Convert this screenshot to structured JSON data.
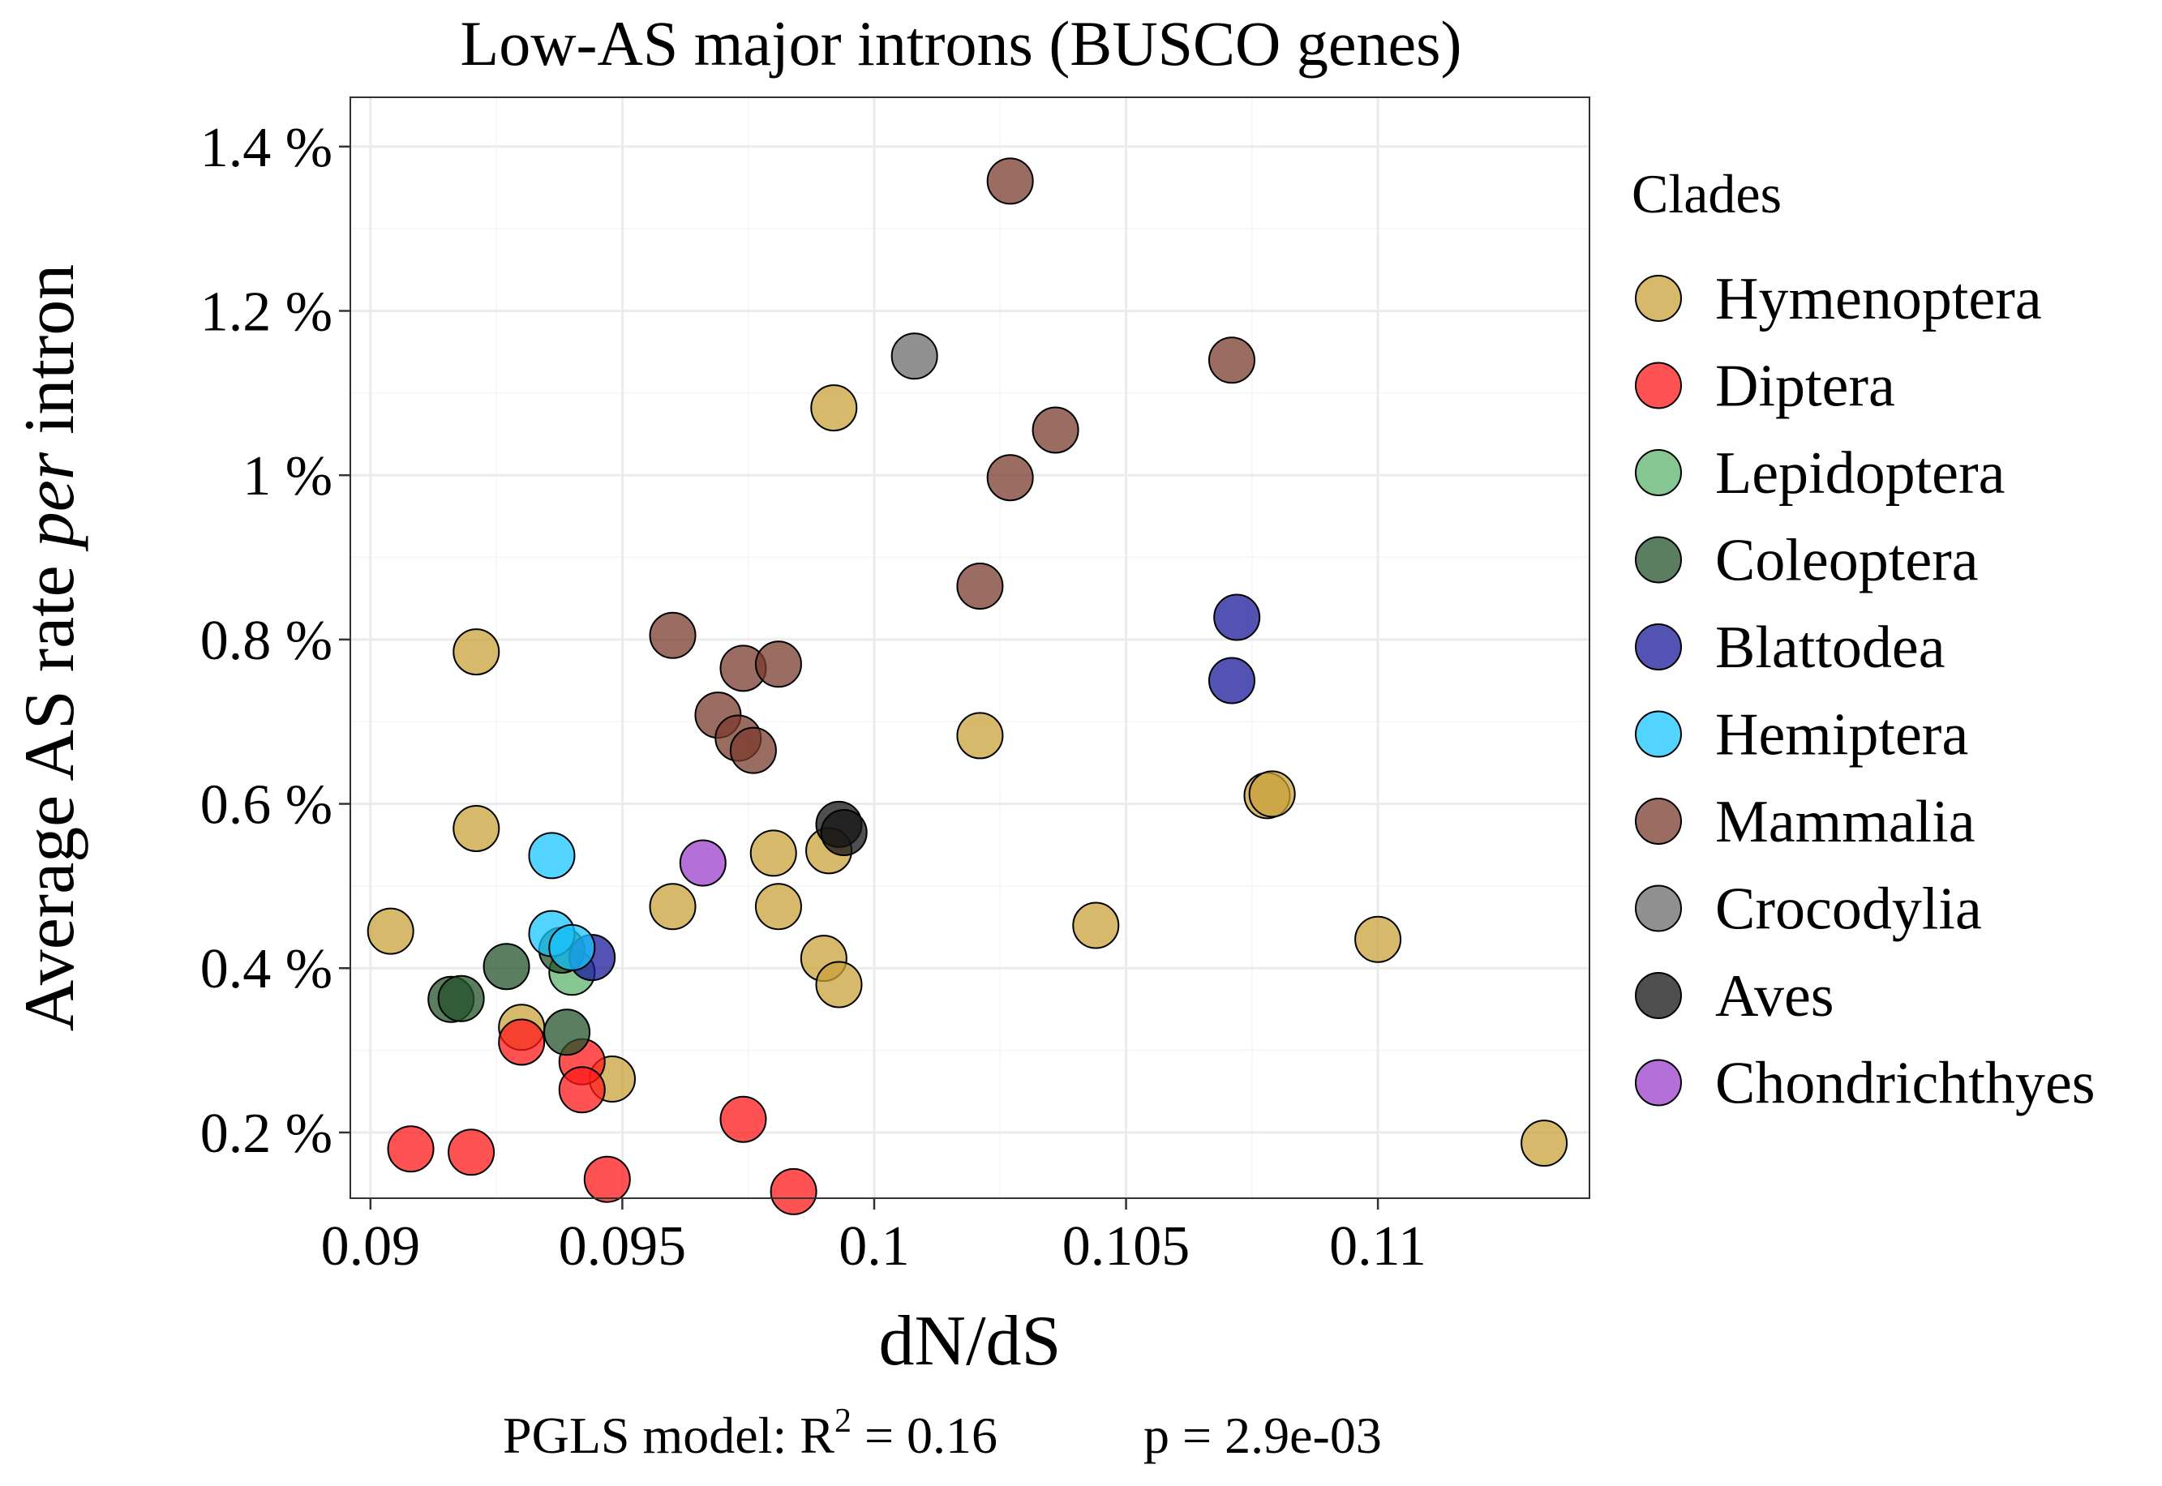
{
  "chart_data": {
    "type": "scatter",
    "title": "Low-AS major introns (BUSCO genes)",
    "xlabel": "dN/dS",
    "ylabel_parts": [
      "Average AS rate ",
      "per",
      " intron"
    ],
    "xlim": [
      0.0896,
      0.1142
    ],
    "ylim": [
      0.0012,
      0.0146
    ],
    "x_ticks": [
      0.09,
      0.095,
      0.1,
      0.105,
      0.11
    ],
    "x_tick_labels": [
      "0.09",
      "0.095",
      "0.1",
      "0.105",
      "0.11"
    ],
    "y_ticks": [
      0.002,
      0.004,
      0.006,
      0.008,
      0.01,
      0.012,
      0.014
    ],
    "y_tick_labels": [
      "0.2 %",
      "0.4 %",
      "0.6 %",
      "0.8 %",
      "1 %",
      "1.2 %",
      "1.4 %"
    ],
    "grid": true,
    "legend_position": "right",
    "legend_title": "Clades",
    "caption": {
      "prefix": "PGLS model: R",
      "superscript": "2",
      "r2": " = 0.16",
      "p": "p = 2.9e-03"
    },
    "series": [
      {
        "name": "Hymenoptera",
        "color": "#c9a13b",
        "points": [
          [
            0.0904,
            0.00445
          ],
          [
            0.0921,
            0.00785
          ],
          [
            0.0921,
            0.0057
          ],
          [
            0.093,
            0.00328
          ],
          [
            0.0948,
            0.00265
          ],
          [
            0.096,
            0.00475
          ],
          [
            0.098,
            0.0054
          ],
          [
            0.0981,
            0.00475
          ],
          [
            0.099,
            0.00412
          ],
          [
            0.0991,
            0.00543
          ],
          [
            0.0992,
            0.01082
          ],
          [
            0.0993,
            0.0038
          ],
          [
            0.1021,
            0.00683
          ],
          [
            0.1044,
            0.00452
          ],
          [
            0.1078,
            0.0061
          ],
          [
            0.1079,
            0.00612
          ],
          [
            0.11,
            0.00435
          ],
          [
            0.1133,
            0.00187
          ]
        ]
      },
      {
        "name": "Diptera",
        "color": "#ff1a1a",
        "points": [
          [
            0.0908,
            0.0018
          ],
          [
            0.092,
            0.00176
          ],
          [
            0.093,
            0.0031
          ],
          [
            0.0942,
            0.00286
          ],
          [
            0.0942,
            0.00252
          ],
          [
            0.0947,
            0.00143
          ],
          [
            0.0974,
            0.00216
          ],
          [
            0.0984,
            0.00128
          ]
        ]
      },
      {
        "name": "Lepidoptera",
        "color": "#5db36e",
        "points": [
          [
            0.094,
            0.00395
          ]
        ]
      },
      {
        "name": "Coleoptera",
        "color": "#24512b",
        "points": [
          [
            0.0916,
            0.00362
          ],
          [
            0.0918,
            0.00363
          ],
          [
            0.0927,
            0.00402
          ],
          [
            0.0938,
            0.00422
          ],
          [
            0.0939,
            0.00322
          ]
        ]
      },
      {
        "name": "Blattodea",
        "color": "#1a1a99",
        "points": [
          [
            0.0944,
            0.00413
          ],
          [
            0.1071,
            0.0075
          ],
          [
            0.1072,
            0.00827
          ]
        ]
      },
      {
        "name": "Hemiptera",
        "color": "#1ac4ff",
        "points": [
          [
            0.0936,
            0.00537
          ],
          [
            0.0936,
            0.00442
          ],
          [
            0.094,
            0.00425
          ]
        ]
      },
      {
        "name": "Mammalia",
        "color": "#7a3b2e",
        "points": [
          [
            0.096,
            0.00805
          ],
          [
            0.0969,
            0.00708
          ],
          [
            0.0973,
            0.0068
          ],
          [
            0.0974,
            0.00765
          ],
          [
            0.0976,
            0.00665
          ],
          [
            0.0981,
            0.0077
          ],
          [
            0.1021,
            0.00865
          ],
          [
            0.1027,
            0.01358
          ],
          [
            0.1027,
            0.00997
          ],
          [
            0.1036,
            0.01055
          ],
          [
            0.1071,
            0.0114
          ]
        ]
      },
      {
        "name": "Crocodylia",
        "color": "#6b6b6b",
        "points": [
          [
            0.1008,
            0.01145
          ]
        ]
      },
      {
        "name": "Aves",
        "color": "#141414",
        "points": [
          [
            0.0993,
            0.00575
          ],
          [
            0.0994,
            0.00565
          ]
        ]
      },
      {
        "name": "Chondrichthyes",
        "color": "#9b3fcc",
        "points": [
          [
            0.0966,
            0.00528
          ]
        ]
      }
    ]
  }
}
